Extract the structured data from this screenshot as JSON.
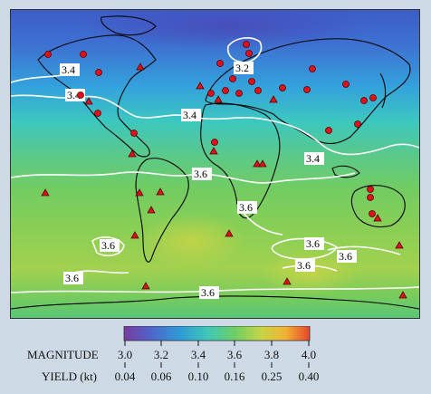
{
  "colors": {
    "background": "#cdd9e4",
    "coast": "#000000",
    "contour": "#ffffff",
    "station": "#e0101a",
    "station_outline": "#5a0000"
  },
  "contour_labels": [
    "3.4",
    "3.2",
    "3.4",
    "3.4",
    "3.6",
    "3.4",
    "3.6",
    "3.6",
    "3.6",
    "3.6",
    "3.6",
    "3.6",
    "3.6"
  ],
  "stations": {
    "seismic_count_shape": "circle",
    "infrasound_count_shape": "triangle"
  },
  "legend": {
    "magnitude_label": "MAGNITUDE",
    "yield_label": "YIELD (kt)",
    "magnitude_ticks": [
      "3.0",
      "3.2",
      "3.4",
      "3.6",
      "3.8",
      "4.0"
    ],
    "yield_ticks": [
      "0.04",
      "0.06",
      "0.10",
      "0.16",
      "0.25",
      "0.40"
    ],
    "colormap": [
      "#7a3b9e",
      "#4f63c9",
      "#2f9ad6",
      "#3fc7b8",
      "#6fcf62",
      "#c8d447",
      "#f2b233",
      "#e4462b"
    ]
  }
}
